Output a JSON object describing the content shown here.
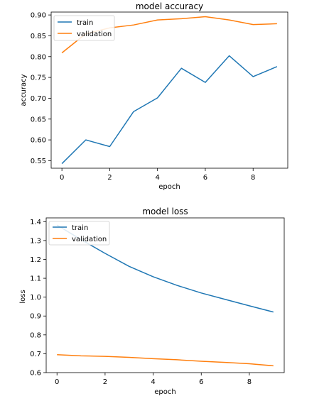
{
  "chart_data": [
    {
      "type": "line",
      "title": "model accuracy",
      "xlabel": "epoch",
      "ylabel": "accuracy",
      "x": [
        0,
        1,
        2,
        3,
        4,
        5,
        6,
        7,
        8,
        9
      ],
      "xlim": [
        -0.45,
        9.45
      ],
      "ylim": [
        0.532,
        0.907
      ],
      "xticks": [
        0,
        2,
        4,
        6,
        8
      ],
      "yticks": [
        "0.55",
        "0.60",
        "0.65",
        "0.70",
        "0.75",
        "0.80",
        "0.85",
        "0.90"
      ],
      "legend_position": "upper left",
      "series": [
        {
          "name": "train",
          "color": "#1f77b4",
          "values": [
            0.543,
            0.6,
            0.584,
            0.668,
            0.701,
            0.772,
            0.738,
            0.802,
            0.752,
            0.776
          ]
        },
        {
          "name": "validation",
          "color": "#ff7f0e",
          "values": [
            0.809,
            0.855,
            0.869,
            0.876,
            0.888,
            0.891,
            0.896,
            0.888,
            0.877,
            0.879
          ]
        }
      ]
    },
    {
      "type": "line",
      "title": "model loss",
      "xlabel": "epoch",
      "ylabel": "loss",
      "x": [
        0,
        1,
        2,
        3,
        4,
        5,
        6,
        7,
        8,
        9
      ],
      "xlim": [
        -0.45,
        9.45
      ],
      "ylim": [
        0.6,
        1.42
      ],
      "xticks": [
        0,
        2,
        4,
        6,
        8
      ],
      "yticks": [
        "0.6",
        "0.7",
        "0.8",
        "0.9",
        "1.0",
        "1.1",
        "1.2",
        "1.3",
        "1.4"
      ],
      "legend_position": "upper left",
      "series": [
        {
          "name": "train",
          "color": "#1f77b4",
          "values": [
            1.382,
            1.305,
            1.232,
            1.163,
            1.108,
            1.062,
            1.022,
            0.988,
            0.954,
            0.921
          ]
        },
        {
          "name": "validation",
          "color": "#ff7f0e",
          "values": [
            0.695,
            0.689,
            0.686,
            0.681,
            0.674,
            0.668,
            0.66,
            0.654,
            0.647,
            0.636
          ]
        }
      ]
    }
  ]
}
